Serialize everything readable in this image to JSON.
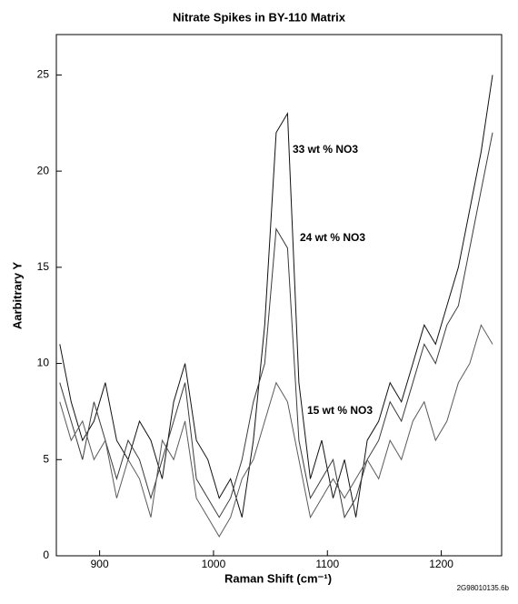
{
  "chart_data": {
    "type": "line",
    "title": "Nitrate Spikes in BY-110 Matrix",
    "x_label": "Raman Shift (cm⁻¹)",
    "y_label": "Aarbitrary Y",
    "footnote": "2G98010135.6b",
    "x": [
      865,
      875,
      885,
      895,
      905,
      915,
      925,
      935,
      945,
      955,
      965,
      975,
      985,
      995,
      1005,
      1015,
      1025,
      1035,
      1045,
      1055,
      1065,
      1075,
      1085,
      1095,
      1105,
      1115,
      1125,
      1135,
      1145,
      1155,
      1165,
      1175,
      1185,
      1195,
      1205,
      1215,
      1225,
      1235,
      1245
    ],
    "series": [
      {
        "name": "33 wt % NO3",
        "color": "#111111",
        "values": [
          11,
          8,
          6,
          7,
          9,
          6,
          5,
          7,
          6,
          4,
          8,
          10,
          6,
          5,
          3,
          4,
          2,
          6,
          12,
          22,
          23,
          9,
          4,
          6,
          3,
          5,
          2,
          6,
          7,
          9,
          8,
          10,
          12,
          11,
          13,
          15,
          18,
          21,
          25
        ]
      },
      {
        "name": "24 wt % NO3",
        "color": "#3a3a3a",
        "values": [
          9,
          7,
          5,
          8,
          6,
          4,
          6,
          5,
          3,
          5,
          7,
          9,
          4,
          3,
          2,
          3,
          5,
          8,
          10,
          17,
          16,
          6,
          3,
          4,
          5,
          2,
          3,
          5,
          6,
          8,
          7,
          9,
          11,
          10,
          12,
          13,
          16,
          19,
          22
        ]
      },
      {
        "name": "15 wt % NO3",
        "color": "#5a5a5a",
        "values": [
          8,
          6,
          7,
          5,
          6,
          3,
          5,
          4,
          2,
          6,
          5,
          7,
          3,
          2,
          1,
          2,
          4,
          5,
          7,
          9,
          8,
          5,
          2,
          3,
          4,
          3,
          4,
          5,
          4,
          6,
          5,
          7,
          8,
          6,
          7,
          9,
          10,
          12,
          11
        ]
      }
    ],
    "xlim": [
      862,
      1253
    ],
    "ylim": [
      0,
      27.1
    ],
    "xticks": [
      900,
      1000,
      1100,
      1200
    ],
    "yticks": [
      0,
      5,
      10,
      15,
      20,
      25
    ],
    "grid": false
  }
}
